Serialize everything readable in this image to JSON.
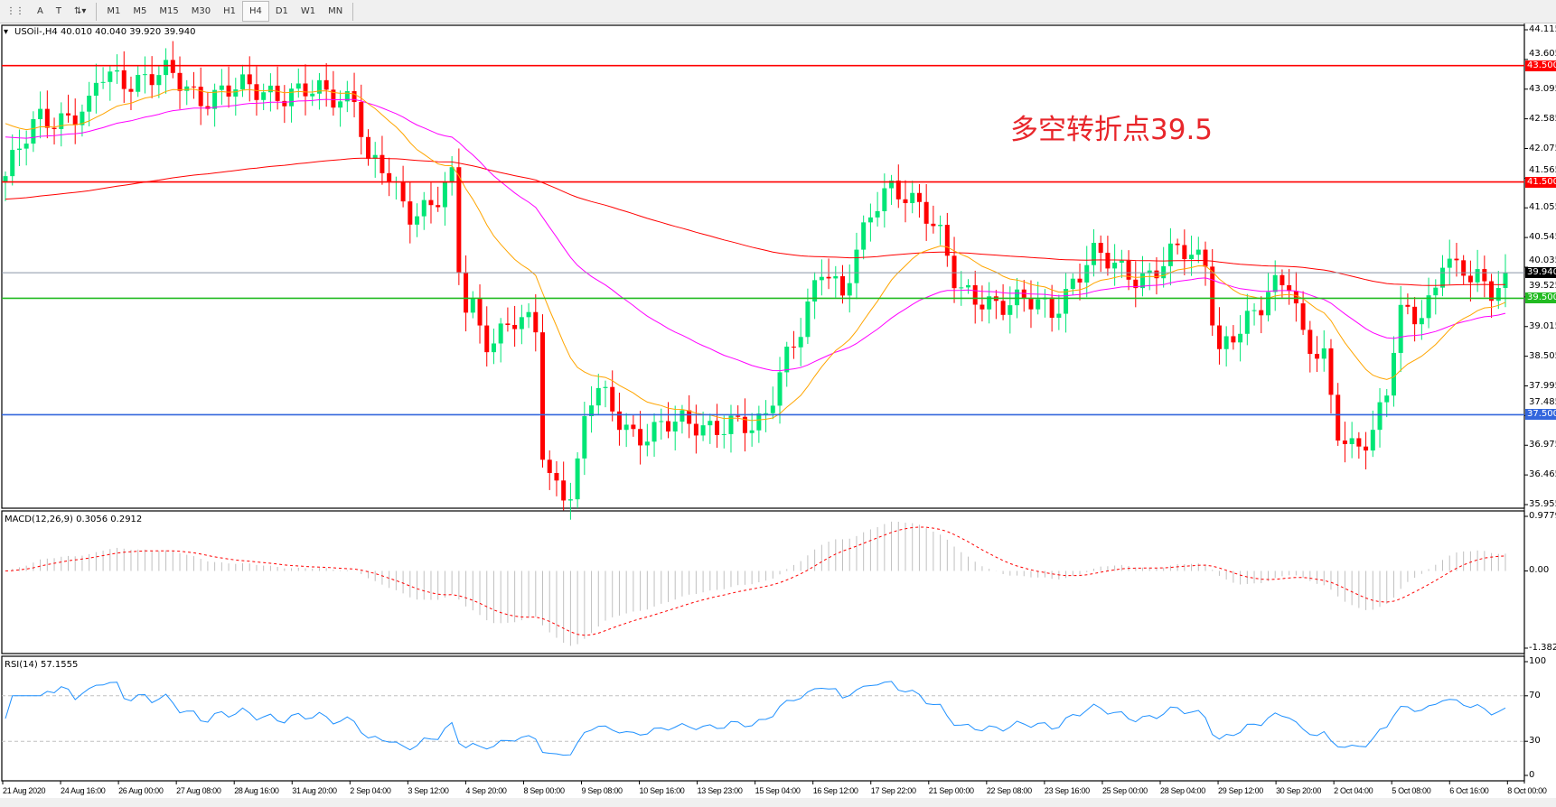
{
  "toolbar": {
    "tools": [
      {
        "icon": "crosshair-grid-icon"
      },
      {
        "icon": "text-icon",
        "label": "A"
      },
      {
        "icon": "text-label-icon",
        "label": "T"
      },
      {
        "icon": "arrows-icon"
      }
    ],
    "timeframes": [
      "M1",
      "M5",
      "M15",
      "M30",
      "H1",
      "H4",
      "D1",
      "W1",
      "MN"
    ],
    "selected_timeframe": "H4"
  },
  "main": {
    "header": "USOil-,H4  40.010 40.040 39.920 39.940",
    "annotation": "多空转折点39.5",
    "price_ticks": [
      "44.115",
      "43.605",
      "43.095",
      "42.585",
      "42.075",
      "41.565",
      "41.055",
      "40.545",
      "40.035",
      "39.525",
      "39.015",
      "38.505",
      "37.995",
      "37.485",
      "36.975",
      "36.465",
      "35.955"
    ],
    "levels": [
      {
        "price": 43.5,
        "label": "43.500",
        "color": "#ff0000"
      },
      {
        "price": 41.5,
        "label": "41.500",
        "color": "#ff0000"
      },
      {
        "price": 39.5,
        "label": "39.500",
        "color": "#22bb22"
      },
      {
        "price": 37.5,
        "label": "37.500",
        "color": "#3366dd"
      }
    ],
    "current_price": {
      "price": 39.94,
      "label": "39.940"
    },
    "colors": {
      "bull": "#00e676",
      "bear": "#ff0000",
      "ma_fast": "#ffa500",
      "ma_mid": "#ff00ff",
      "ma_slow": "#ff0000"
    }
  },
  "macd": {
    "header": "MACD(12,26,9) 0.3056 0.2912",
    "ticks": [
      "0.9779",
      "0.00",
      "-1.382"
    ]
  },
  "rsi": {
    "header": "RSI(14) 57.1555",
    "ticks": [
      "100",
      "70",
      "30",
      "0"
    ]
  },
  "time_axis": [
    "21 Aug 2020",
    "24 Aug 16:00",
    "26 Aug 00:00",
    "27 Aug 08:00",
    "28 Aug 16:00",
    "31 Aug 20:00",
    "2 Sep 04:00",
    "3 Sep 12:00",
    "4 Sep 20:00",
    "8 Sep 00:00",
    "9 Sep 08:00",
    "10 Sep 16:00",
    "13 Sep 23:00",
    "15 Sep 04:00",
    "16 Sep 12:00",
    "17 Sep 22:00",
    "21 Sep 00:00",
    "22 Sep 08:00",
    "23 Sep 16:00",
    "25 Sep 00:00",
    "28 Sep 04:00",
    "29 Sep 12:00",
    "30 Sep 20:00",
    "2 Oct 04:00",
    "5 Oct 08:00",
    "6 Oct 16:00",
    "8 Oct 00:00"
  ],
  "chart_data": {
    "type": "candlestick",
    "symbol": "USOil-",
    "timeframe": "H4",
    "ylim": [
      35.955,
      44.115
    ],
    "close_path": [
      41.6,
      42.6,
      42.7,
      43.3,
      43.3,
      43.0,
      43.1,
      43.0,
      43.0,
      41.8,
      41.6,
      41.0,
      41.2,
      41.5,
      39.3,
      39.4,
      38.8,
      39.1,
      38.9,
      37.0,
      36.4,
      36.2,
      37.5,
      37.9,
      37.5,
      37.2,
      37.2,
      37.4,
      37.3,
      37.2,
      37.5,
      38.5,
      39.0,
      40.0,
      39.6,
      40.3,
      41.0,
      41.3,
      41.2,
      40.5,
      39.5,
      39.5,
      39.4,
      39.3,
      39.8,
      40.2,
      40.0,
      39.9,
      40.3,
      40.2,
      38.6,
      38.9,
      39.2,
      39.8,
      39.9,
      38.6,
      38.4,
      37.3,
      37.0,
      37.2,
      37.8,
      39.2,
      39.3,
      39.6,
      40.3,
      39.8,
      39.9,
      39.6,
      39.9,
      39.94
    ],
    "last_ohlc": {
      "open": 40.01,
      "high": 40.04,
      "low": 39.92,
      "close": 39.94
    }
  }
}
